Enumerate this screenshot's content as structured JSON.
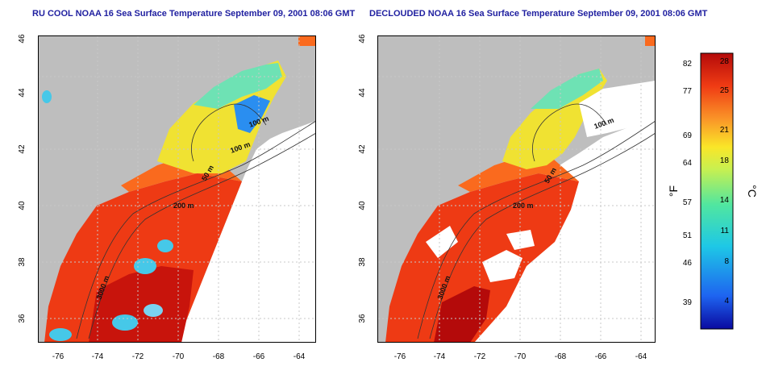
{
  "panels": [
    {
      "title": "RU COOL NOAA 16 Sea Surface Temperature September 09, 2001 08:06 GMT",
      "declouded": false
    },
    {
      "title": "DECLOUDED NOAA 16 Sea Surface Temperature September 09, 2001 08:06 GMT",
      "declouded": true
    }
  ],
  "map": {
    "x_ticks": [
      "-76",
      "-74",
      "-72",
      "-70",
      "-68",
      "-66",
      "-64"
    ],
    "y_ticks": [
      "36",
      "38",
      "40",
      "42",
      "44",
      "46"
    ],
    "contour_labels": [
      "100 m",
      "100 m",
      "50 m",
      "50 m",
      "200 m",
      "3000 m"
    ]
  },
  "colorbar": {
    "f_label": "°F",
    "c_label": "°C",
    "f_ticks": [
      "82",
      "77",
      "69",
      "64",
      "57",
      "51",
      "46",
      "39"
    ],
    "c_ticks": [
      "28",
      "25",
      "21",
      "18",
      "14",
      "11",
      "8",
      "4"
    ]
  },
  "colors": {
    "land": "#bebebe",
    "no_data": "#ffffff",
    "title": "#1f1fa0",
    "gradient": [
      "#0a0aa0",
      "#1e64f0",
      "#1ec8e6",
      "#50e6a0",
      "#c8f050",
      "#fae628",
      "#fa9628",
      "#f03c14",
      "#b40a0a"
    ]
  }
}
